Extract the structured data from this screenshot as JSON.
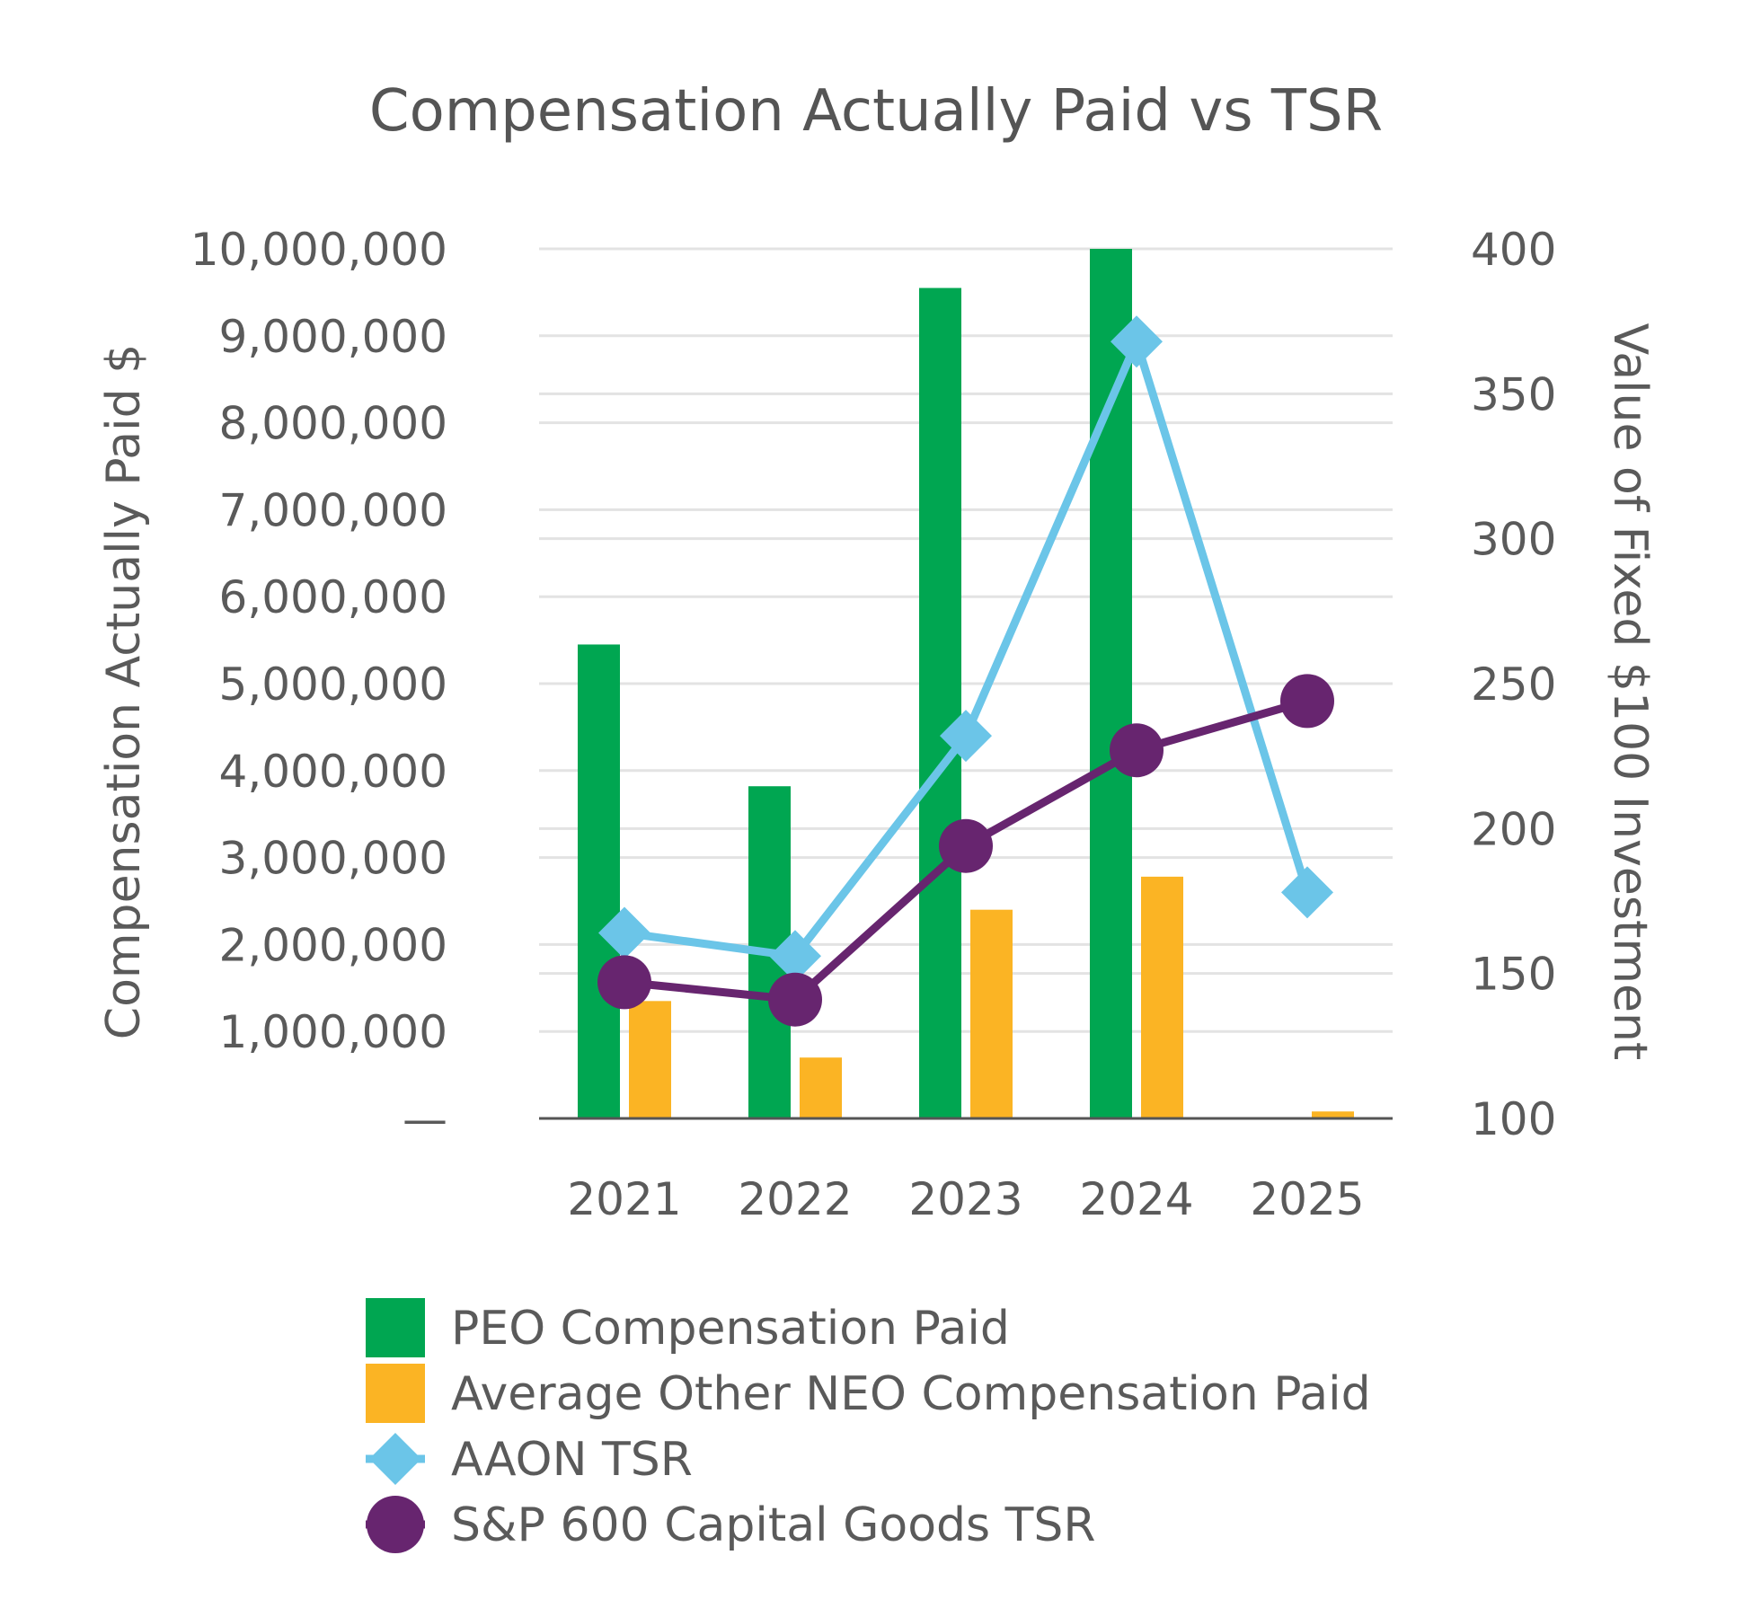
{
  "chart_data": {
    "type": "bar",
    "title": "Compensation Actually Paid vs TSR",
    "categories": [
      "2021",
      "2022",
      "2023",
      "2024",
      "2025"
    ],
    "y_left": {
      "label": "Compensation Actually Paid $",
      "ylim": [
        0,
        10000000
      ],
      "ticks": [
        "—",
        "1,000,000",
        "2,000,000",
        "3,000,000",
        "4,000,000",
        "5,000,000",
        "6,000,000",
        "7,000,000",
        "8,000,000",
        "9,000,000",
        "10,000,000"
      ]
    },
    "y_right": {
      "label": "Value of Fixed $100 Investment",
      "ylim": [
        100,
        400
      ],
      "ticks": [
        "100",
        "150",
        "200",
        "250",
        "300",
        "350",
        "400"
      ]
    },
    "grid": true,
    "legend_placement": "bottom",
    "series": [
      {
        "name": "PEO Compensation Paid",
        "type": "bar",
        "axis": "left",
        "color": "#00a651",
        "values": [
          5450000,
          3820000,
          9550000,
          10000000,
          0
        ]
      },
      {
        "name": "Average Other NEO Compensation Paid",
        "type": "bar",
        "axis": "left",
        "color": "#fbb424",
        "values": [
          1350000,
          700000,
          2400000,
          2780000,
          80000
        ]
      },
      {
        "name": "AAON TSR",
        "type": "line",
        "marker": "diamond",
        "axis": "right",
        "color": "#6bc5e8",
        "values": [
          164,
          156,
          232,
          368,
          178
        ]
      },
      {
        "name": "S&P 600 Capital Goods TSR",
        "type": "line",
        "marker": "circle",
        "axis": "right",
        "color": "#67256f",
        "values": [
          147,
          141,
          194,
          227,
          244
        ]
      }
    ]
  }
}
